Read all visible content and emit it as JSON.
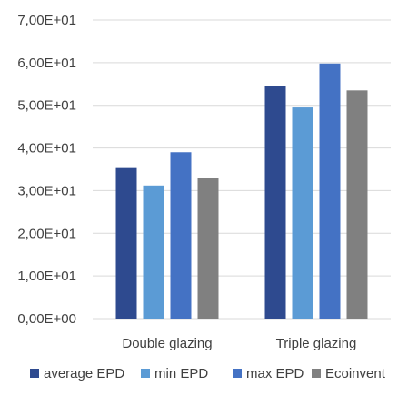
{
  "chart_data": {
    "type": "bar",
    "categories": [
      "Double glazing",
      "Triple glazing"
    ],
    "series": [
      {
        "name": "average EPD",
        "color": "#2e4a8f",
        "values": [
          35.5,
          54.5
        ]
      },
      {
        "name": "min EPD",
        "color": "#5b9bd5",
        "values": [
          31.2,
          49.5
        ]
      },
      {
        "name": "max EPD",
        "color": "#4472c4",
        "values": [
          39.0,
          59.8
        ]
      },
      {
        "name": "Ecoinvent",
        "color": "#808080",
        "values": [
          33.0,
          53.5
        ]
      }
    ],
    "yticks": [
      "0,00E+00",
      "1,00E+01",
      "2,00E+01",
      "3,00E+01",
      "4,00E+01",
      "5,00E+01",
      "6,00E+01",
      "7,00E+01"
    ],
    "ylim": [
      0,
      70
    ],
    "grid": true,
    "legend_position": "bottom",
    "title": "",
    "xlabel": "",
    "ylabel": ""
  }
}
